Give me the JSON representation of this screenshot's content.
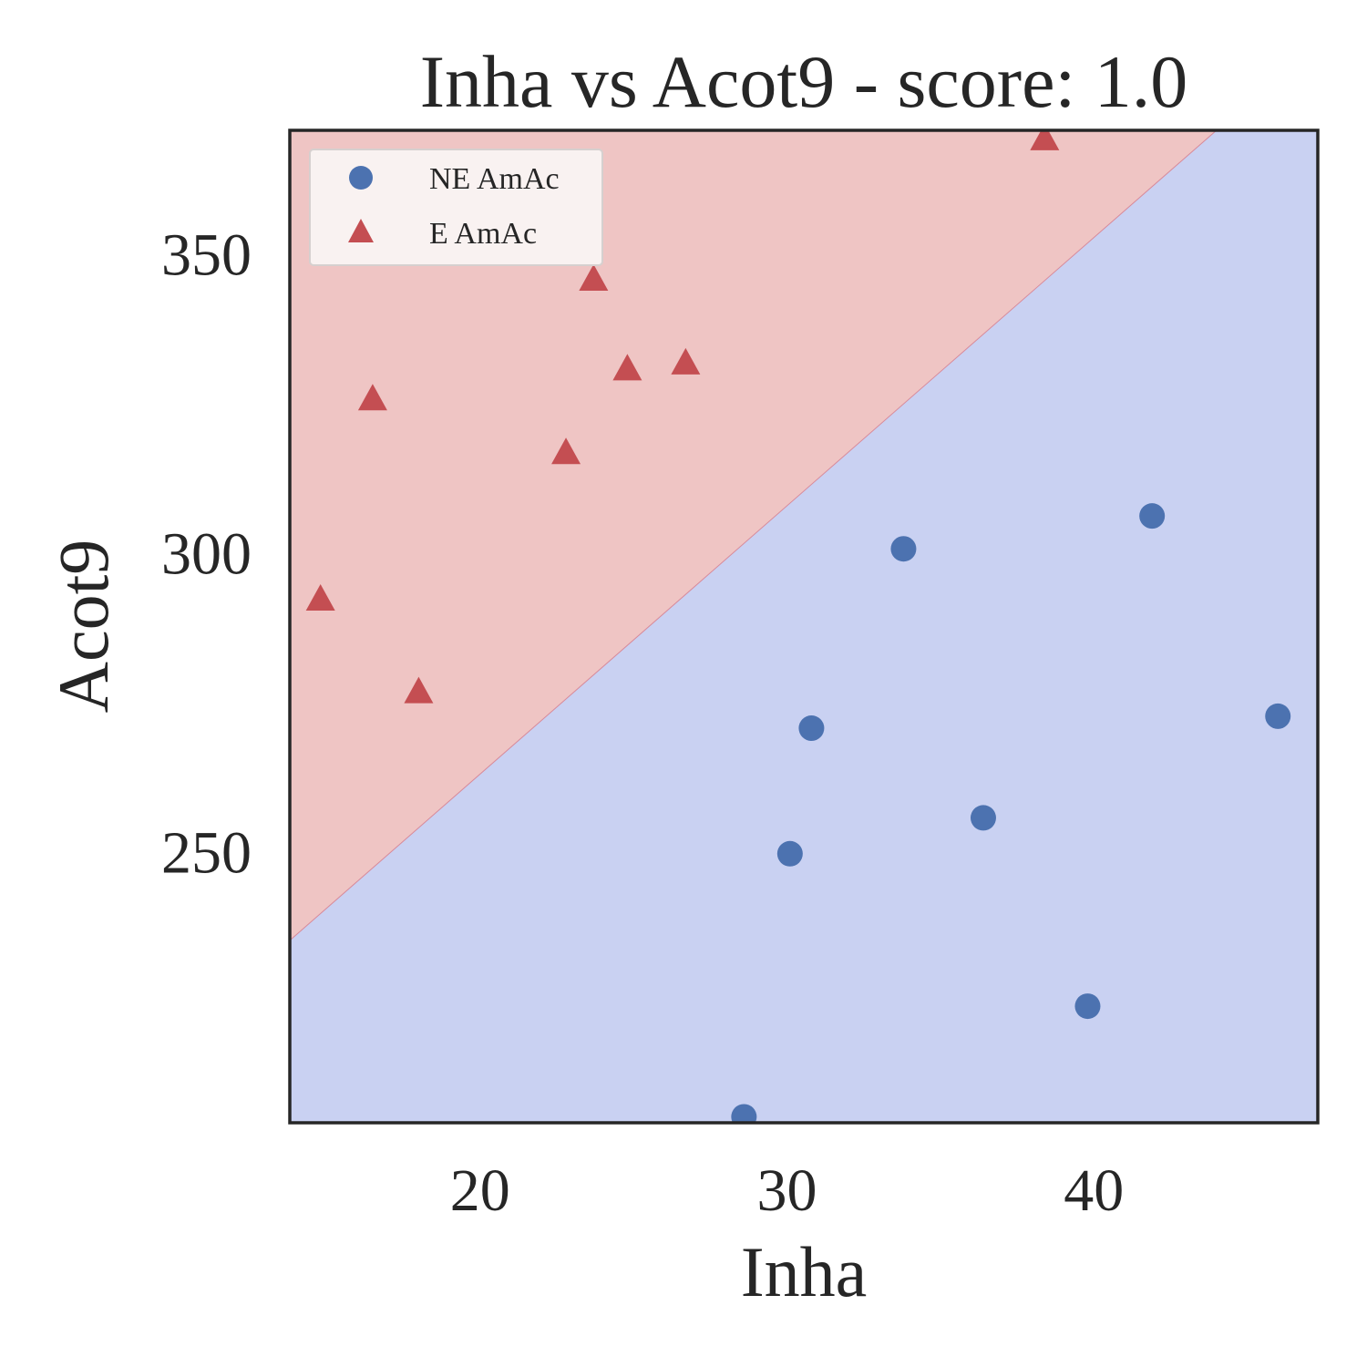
{
  "chart_data": {
    "type": "scatter",
    "title": "Inha vs Acot9 - score: 1.0",
    "xlabel": "Inha",
    "ylabel": "Acot9",
    "xlim": [
      13.8,
      47.3
    ],
    "ylim": [
      204.5,
      370.5
    ],
    "xticks": [
      20,
      30,
      40
    ],
    "yticks": [
      250,
      300,
      350
    ],
    "grid": false,
    "legend_position": "top-left",
    "decision_boundary": {
      "line": [
        [
          13.8,
          235.0
        ],
        [
          44.0,
          370.5
        ]
      ],
      "regions": [
        {
          "side": "above",
          "color": "#efc5c4"
        },
        {
          "side": "below",
          "color": "#c9d1f2"
        }
      ]
    },
    "series": [
      {
        "name": "NE AmAc",
        "marker": "circle",
        "color": "#4c72b0",
        "points": [
          [
            28.6,
            205.5
          ],
          [
            30.1,
            249.5
          ],
          [
            30.8,
            270.5
          ],
          [
            33.8,
            300.5
          ],
          [
            36.4,
            255.5
          ],
          [
            39.8,
            224.0
          ],
          [
            41.9,
            306.0
          ],
          [
            46.0,
            272.5
          ]
        ]
      },
      {
        "name": "E AmAc",
        "marker": "triangle",
        "color": "#c44e52",
        "points": [
          [
            14.8,
            292.0
          ],
          [
            16.5,
            325.5
          ],
          [
            18.0,
            276.5
          ],
          [
            22.8,
            316.5
          ],
          [
            23.7,
            345.5
          ],
          [
            24.8,
            330.5
          ],
          [
            26.7,
            331.5
          ],
          [
            38.4,
            369.0
          ]
        ]
      }
    ]
  }
}
